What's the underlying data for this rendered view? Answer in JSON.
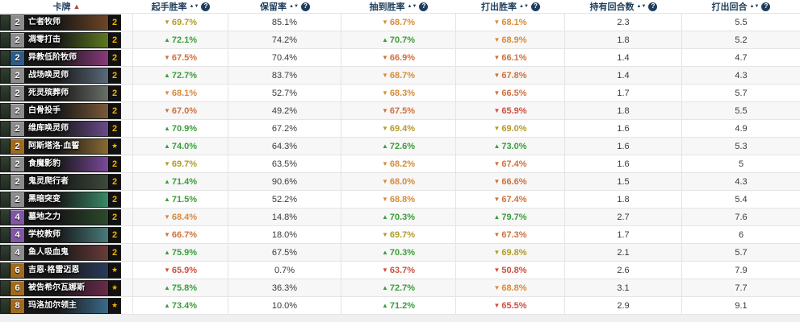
{
  "columns": [
    {
      "key": "card",
      "label": "卡牌",
      "sorted": "asc"
    },
    {
      "key": "mulligan",
      "label": "起手胜率",
      "info": true
    },
    {
      "key": "kept",
      "label": "保留率",
      "info": true
    },
    {
      "key": "drawn",
      "label": "抽到胜率",
      "info": true
    },
    {
      "key": "played",
      "label": "打出胜率",
      "info": true
    },
    {
      "key": "held",
      "label": "持有回合数",
      "info": true
    },
    {
      "key": "turn",
      "label": "打出回合",
      "info": true
    }
  ],
  "glyphs": {
    "sorted": "▲",
    "sort_asc": "▲",
    "sort_desc": "▼",
    "info": "?",
    "star": "★"
  },
  "palette": {
    "green": "#3a9d3a",
    "olive": "#b39b2a",
    "orange": "#d78b3a",
    "red_orange": "#d0703c",
    "red": "#cd4f3f",
    "gold": "#f3b300",
    "header_text": "#1d3d5c",
    "sorted_arrow": "#b0413e"
  },
  "rarity_colors": {
    "common": "#8c8c8c",
    "rare": "#2f5d8a",
    "epic": "#8156a5",
    "legendary": "#a06b1e"
  },
  "cards": [
    {
      "cost": 2,
      "rarity": "common",
      "name": "亡者牧师",
      "count": "2",
      "art": "#6f4526",
      "mulligan": 69.7,
      "kept": "85.1%",
      "drawn": 68.7,
      "played": 68.1,
      "held": "2.3",
      "turn": "5.5"
    },
    {
      "cost": 2,
      "rarity": "common",
      "name": "凋零打击",
      "count": "2",
      "art": "#5d7a1f",
      "mulligan": 72.1,
      "kept": "74.2%",
      "drawn": 70.7,
      "played": 68.9,
      "held": "1.8",
      "turn": "5.2"
    },
    {
      "cost": 2,
      "rarity": "rare",
      "name": "异教低阶牧师",
      "count": "2",
      "art": "#8a3a7a",
      "mulligan": 67.5,
      "kept": "70.4%",
      "drawn": 66.9,
      "played": 66.1,
      "held": "1.4",
      "turn": "4.7"
    },
    {
      "cost": 2,
      "rarity": "common",
      "name": "战场唤灵师",
      "count": "2",
      "art": "#5a6a7a",
      "mulligan": 72.7,
      "kept": "83.7%",
      "drawn": 68.7,
      "played": 67.8,
      "held": "1.4",
      "turn": "4.3"
    },
    {
      "cost": 2,
      "rarity": "common",
      "name": "死灵殡葬师",
      "count": "2",
      "art": "#6a6f68",
      "mulligan": 68.1,
      "kept": "52.7%",
      "drawn": 68.3,
      "played": 66.5,
      "held": "1.7",
      "turn": "5.7"
    },
    {
      "cost": 2,
      "rarity": "common",
      "name": "白骨投手",
      "count": "2",
      "art": "#7a5a38",
      "mulligan": 67.0,
      "kept": "49.2%",
      "drawn": 67.5,
      "played": 65.9,
      "held": "1.8",
      "turn": "5.5"
    },
    {
      "cost": 2,
      "rarity": "common",
      "name": "维库唤灵师",
      "count": "2",
      "art": "#6a4a8a",
      "mulligan": 70.9,
      "kept": "67.2%",
      "drawn": 69.4,
      "played": 69.0,
      "held": "1.6",
      "turn": "4.9"
    },
    {
      "cost": 2,
      "rarity": "legendary",
      "name": "阿斯塔洛·血誓",
      "count": "★",
      "art": "#8a6a32",
      "mulligan": 74.0,
      "kept": "64.3%",
      "drawn": 72.6,
      "played": 73.0,
      "held": "1.6",
      "turn": "5.3"
    },
    {
      "cost": 2,
      "rarity": "common",
      "name": "食魔影豹",
      "count": "2",
      "art": "#7a4a9a",
      "mulligan": 69.7,
      "kept": "63.5%",
      "drawn": 68.2,
      "played": 67.4,
      "held": "1.6",
      "turn": "5"
    },
    {
      "cost": 2,
      "rarity": "common",
      "name": "鬼灵爬行者",
      "count": "2",
      "art": "#3c4a3c",
      "mulligan": 71.4,
      "kept": "90.6%",
      "drawn": 68.0,
      "played": 66.6,
      "held": "1.5",
      "turn": "4.3"
    },
    {
      "cost": 2,
      "rarity": "common",
      "name": "黑暗突变",
      "count": "2",
      "art": "#3a8a68",
      "mulligan": 71.5,
      "kept": "52.2%",
      "drawn": 68.8,
      "played": 67.4,
      "held": "1.8",
      "turn": "5.4"
    },
    {
      "cost": 4,
      "rarity": "epic",
      "name": "墓地之力",
      "count": "2",
      "art": "#2c4a2c",
      "mulligan": 68.4,
      "kept": "14.8%",
      "drawn": 70.3,
      "played": 79.7,
      "held": "2.7",
      "turn": "7.6"
    },
    {
      "cost": 4,
      "rarity": "epic",
      "name": "学校教师",
      "count": "2",
      "art": "#4a7a7a",
      "mulligan": 66.7,
      "kept": "18.0%",
      "drawn": 69.7,
      "played": 67.3,
      "held": "1.7",
      "turn": "6"
    },
    {
      "cost": 4,
      "rarity": "common",
      "name": "鱼人吸血鬼",
      "count": "2",
      "art": "#6a3a3a",
      "mulligan": 75.9,
      "kept": "67.5%",
      "drawn": 70.3,
      "played": 69.8,
      "held": "2.1",
      "turn": "5.7"
    },
    {
      "cost": 6,
      "rarity": "legendary",
      "name": "吉恩·格雷迈恩",
      "count": "★",
      "art": "#2a3a5a",
      "mulligan": 65.9,
      "kept": "0.7%",
      "drawn": 63.7,
      "played": 50.8,
      "held": "2.6",
      "turn": "7.9"
    },
    {
      "cost": 6,
      "rarity": "legendary",
      "name": "被告希尔瓦娜斯",
      "count": "★",
      "art": "#6a2a4a",
      "mulligan": 75.8,
      "kept": "36.3%",
      "drawn": 72.7,
      "played": 68.8,
      "held": "3.1",
      "turn": "7.7"
    },
    {
      "cost": 8,
      "rarity": "legendary",
      "name": "玛洛加尔领主",
      "count": "★",
      "art": "#3a6a8a",
      "mulligan": 73.4,
      "kept": "10.0%",
      "drawn": 71.2,
      "played": 65.5,
      "held": "2.9",
      "turn": "9.1"
    }
  ]
}
